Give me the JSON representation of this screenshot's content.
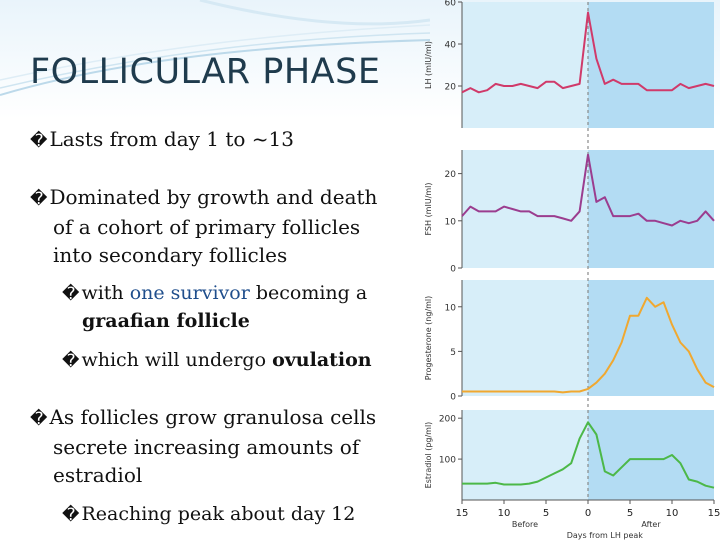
{
  "slide": {
    "title": "FOLLICULAR PHASE",
    "bullet_glyph": "�",
    "bullets": [
      {
        "text": "Lasts from day 1 to ~13"
      },
      {
        "line1": "Dominated by growth and death",
        "line2": "of a cohort of primary follicles",
        "line3": "into secondary follicles"
      },
      {
        "pre": "with ",
        "highlight": "one survivor",
        "post": " becoming a",
        "line2_bold": "graafian follicle"
      },
      {
        "pre": "which will undergo ",
        "bold": "ovulation"
      },
      {
        "line1": "As follicles grow granulosa cells",
        "line2": "secrete increasing amounts of",
        "line3": "estradiol"
      },
      {
        "text": "Reaching peak about day 12"
      }
    ]
  },
  "chart_data": [
    {
      "type": "line",
      "ylabel": "LH (mIU/ml)",
      "yticks": [
        20,
        40,
        60
      ],
      "ylim": [
        0,
        60
      ],
      "color": "#d03a6a",
      "x": [
        -15,
        -14,
        -13,
        -12,
        -11,
        -10,
        -9,
        -8,
        -7,
        -6,
        -5,
        -4,
        -3,
        -2,
        -1,
        0,
        1,
        2,
        3,
        4,
        5,
        6,
        7,
        8,
        9,
        10,
        11,
        12,
        13,
        14,
        15
      ],
      "values": [
        17,
        19,
        17,
        18,
        21,
        20,
        20,
        21,
        20,
        19,
        22,
        22,
        19,
        20,
        21,
        55,
        33,
        21,
        23,
        21,
        21,
        21,
        18,
        18,
        18,
        18,
        21,
        19,
        20,
        21,
        20
      ]
    },
    {
      "type": "line",
      "ylabel": "FSH (mIU/ml)",
      "yticks": [
        0,
        10,
        20
      ],
      "ylim": [
        0,
        25
      ],
      "color": "#9b3d8f",
      "x": [
        -15,
        -14,
        -13,
        -12,
        -11,
        -10,
        -9,
        -8,
        -7,
        -6,
        -5,
        -4,
        -3,
        -2,
        -1,
        0,
        1,
        2,
        3,
        4,
        5,
        6,
        7,
        8,
        9,
        10,
        11,
        12,
        13,
        14,
        15
      ],
      "values": [
        11,
        13,
        12,
        12,
        12,
        13,
        12.5,
        12,
        12,
        11,
        11,
        11,
        10.5,
        10,
        12,
        24,
        14,
        15,
        11,
        11,
        11,
        11.5,
        10,
        10,
        9.5,
        9,
        10,
        9.5,
        10,
        12,
        10
      ]
    },
    {
      "type": "line",
      "ylabel": "Progesterone (ng/ml)",
      "yticks": [
        0,
        5,
        10
      ],
      "ylim": [
        0,
        13
      ],
      "color": "#f0a830",
      "x": [
        -15,
        -14,
        -13,
        -12,
        -11,
        -10,
        -9,
        -8,
        -7,
        -6,
        -5,
        -4,
        -3,
        -2,
        -1,
        0,
        1,
        2,
        3,
        4,
        5,
        6,
        7,
        8,
        9,
        10,
        11,
        12,
        13,
        14,
        15
      ],
      "values": [
        0.5,
        0.5,
        0.5,
        0.5,
        0.5,
        0.5,
        0.5,
        0.5,
        0.5,
        0.5,
        0.5,
        0.5,
        0.4,
        0.5,
        0.5,
        0.8,
        1.5,
        2.5,
        4,
        6,
        9,
        9,
        11,
        10,
        10.5,
        8,
        6,
        5,
        3,
        1.5,
        1
      ]
    },
    {
      "type": "line",
      "ylabel": "Estradiol (pg/ml)",
      "yticks": [
        100,
        200
      ],
      "ylim": [
        0,
        220
      ],
      "color": "#4cb848",
      "x": [
        -15,
        -14,
        -13,
        -12,
        -11,
        -10,
        -9,
        -8,
        -7,
        -6,
        -5,
        -4,
        -3,
        -2,
        -1,
        0,
        1,
        2,
        3,
        4,
        5,
        6,
        7,
        8,
        9,
        10,
        11,
        12,
        13,
        14,
        15
      ],
      "values": [
        40,
        40,
        40,
        40,
        42,
        38,
        38,
        38,
        40,
        45,
        55,
        65,
        75,
        90,
        150,
        190,
        160,
        70,
        60,
        80,
        100,
        100,
        100,
        100,
        100,
        110,
        90,
        50,
        45,
        35,
        30
      ],
      "xticks": [
        -15,
        -10,
        -5,
        0,
        5,
        10,
        15
      ],
      "xtick_labels": [
        "15",
        "10",
        "5",
        "0",
        "5",
        "10",
        "15"
      ],
      "xlabel_before": "Before",
      "xlabel_after": "After",
      "xlabel": "Days from LH peak"
    }
  ],
  "colors": {
    "left_phase": "#d7eef9",
    "right_phase": "#b3dcf3",
    "title": "#1f3b4d"
  }
}
